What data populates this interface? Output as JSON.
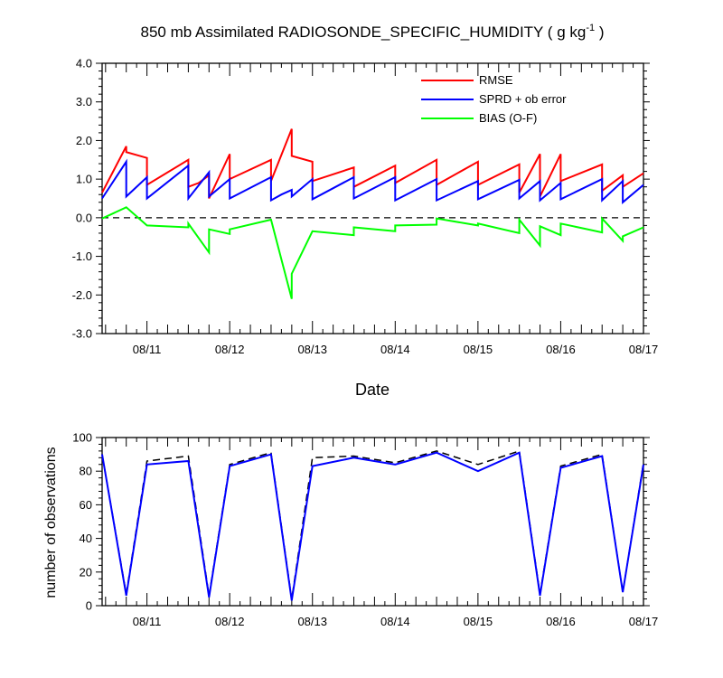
{
  "title": "850 mb Assimilated RADIOSONDE_SPECIFIC_HUMIDITY ( g kg",
  "title_sup": "-1",
  "title_end": " )",
  "chart_data": [
    {
      "type": "line",
      "xlabel": "Date",
      "ylabel": "",
      "x_tick_labels": [
        "08/11",
        "08/12",
        "08/13",
        "08/14",
        "08/15",
        "08/16",
        "08/17"
      ],
      "xlim": [
        "08/10 11:00",
        "08/17 00:00"
      ],
      "ylim": [
        -3.0,
        4.0
      ],
      "y_ticks": [
        -3.0,
        -2.0,
        -1.0,
        0.0,
        1.0,
        2.0,
        3.0,
        4.0
      ],
      "y_tick_labels": [
        "-3.0",
        "-2.0",
        "-1.0",
        "0.0",
        "1.0",
        "2.0",
        "3.0",
        "4.0"
      ],
      "grid": false,
      "legend_position": "top-right",
      "reference_line": {
        "y": 0.0,
        "style": "dashed"
      },
      "series": [
        {
          "name": "RMSE",
          "color": "#ff0000",
          "x": [
            "08/10 11:00",
            "08/10 18:00",
            "08/10 18:00",
            "08/11 00:00",
            "08/11 00:00",
            "08/11 12:00",
            "08/11 12:00",
            "08/11 15:00",
            "08/11 18:00",
            "08/11 18:00",
            "08/12 00:00",
            "08/12 00:00",
            "08/12 12:00",
            "08/12 12:00",
            "08/12 18:00",
            "08/12 18:00",
            "08/13 00:00",
            "08/13 00:00",
            "08/13 12:00",
            "08/13 12:00",
            "08/14 00:00",
            "08/14 00:00",
            "08/14 12:00",
            "08/14 12:00",
            "08/15 00:00",
            "08/15 00:00",
            "08/15 12:00",
            "08/15 12:00",
            "08/15 18:00",
            "08/15 18:00",
            "08/16 00:00",
            "08/16 00:00",
            "08/16 12:00",
            "08/16 12:00",
            "08/16 18:00",
            "08/16 18:00",
            "08/17 00:00"
          ],
          "values": [
            0.65,
            1.85,
            1.7,
            1.55,
            0.85,
            1.5,
            0.8,
            0.9,
            1.1,
            0.5,
            1.65,
            1.0,
            1.5,
            0.95,
            2.3,
            1.6,
            1.45,
            0.95,
            1.3,
            0.8,
            1.35,
            0.9,
            1.5,
            0.85,
            1.45,
            0.85,
            1.38,
            0.65,
            1.65,
            0.55,
            1.65,
            0.95,
            1.38,
            0.7,
            1.1,
            0.8,
            1.15
          ]
        },
        {
          "name": "SPRD + ob error",
          "color": "#0000ff",
          "x": [
            "08/10 11:00",
            "08/10 18:00",
            "08/10 18:00",
            "08/11 00:00",
            "08/11 00:00",
            "08/11 12:00",
            "08/11 12:00",
            "08/11 18:00",
            "08/11 18:00",
            "08/12 00:00",
            "08/12 00:00",
            "08/12 12:00",
            "08/12 12:00",
            "08/12 15:00",
            "08/12 18:00",
            "08/12 18:00",
            "08/13 00:00",
            "08/13 00:00",
            "08/13 12:00",
            "08/13 12:00",
            "08/14 00:00",
            "08/14 00:00",
            "08/14 12:00",
            "08/14 12:00",
            "08/15 00:00",
            "08/15 00:00",
            "08/15 12:00",
            "08/15 12:00",
            "08/15 18:00",
            "08/15 18:00",
            "08/16 00:00",
            "08/16 00:00",
            "08/16 12:00",
            "08/16 12:00",
            "08/16 18:00",
            "08/16 18:00",
            "08/17 00:00"
          ],
          "values": [
            0.5,
            1.45,
            0.55,
            1.05,
            0.5,
            1.35,
            0.5,
            1.18,
            0.55,
            1.0,
            0.5,
            1.05,
            0.45,
            0.6,
            0.72,
            0.55,
            1.0,
            0.48,
            1.05,
            0.5,
            1.05,
            0.45,
            1.0,
            0.45,
            0.95,
            0.48,
            0.98,
            0.5,
            0.95,
            0.45,
            0.9,
            0.48,
            1.0,
            0.45,
            0.95,
            0.4,
            0.85
          ]
        },
        {
          "name": "BIAS (O-F)",
          "color": "#00ff00",
          "x": [
            "08/10 11:00",
            "08/10 18:00",
            "08/11 00:00",
            "08/11 12:00",
            "08/11 12:00",
            "08/11 18:00",
            "08/11 18:00",
            "08/12 00:00",
            "08/12 00:00",
            "08/12 12:00",
            "08/12 18:00",
            "08/12 18:00",
            "08/13 00:00",
            "08/13 12:00",
            "08/13 12:00",
            "08/14 00:00",
            "08/14 00:00",
            "08/14 12:00",
            "08/14 12:00",
            "08/15 00:00",
            "08/15 00:00",
            "08/15 12:00",
            "08/15 12:00",
            "08/15 18:00",
            "08/15 18:00",
            "08/16 00:00",
            "08/16 00:00",
            "08/16 12:00",
            "08/16 12:00",
            "08/16 18:00",
            "08/16 18:00",
            "08/17 00:00"
          ],
          "values": [
            -0.02,
            0.27,
            -0.2,
            -0.25,
            -0.15,
            -0.9,
            -0.3,
            -0.42,
            -0.3,
            -0.05,
            -2.1,
            -1.45,
            -0.35,
            -0.45,
            -0.25,
            -0.35,
            -0.2,
            -0.18,
            -0.02,
            -0.2,
            -0.15,
            -0.4,
            -0.05,
            -0.72,
            -0.22,
            -0.45,
            -0.15,
            -0.38,
            -0.02,
            -0.6,
            -0.48,
            -0.25
          ]
        }
      ]
    },
    {
      "type": "line",
      "xlabel": "",
      "ylabel": "number of observations",
      "x_tick_labels": [
        "08/11",
        "08/12",
        "08/13",
        "08/14",
        "08/15",
        "08/16",
        "08/17"
      ],
      "xlim": [
        "08/10 11:00",
        "08/17 00:00"
      ],
      "ylim": [
        0,
        100
      ],
      "y_ticks": [
        0,
        20,
        40,
        60,
        80,
        100
      ],
      "y_tick_labels": [
        "0",
        "20",
        "40",
        "60",
        "80",
        "100"
      ],
      "grid": false,
      "series": [
        {
          "style": "dashed",
          "color": "#000000",
          "x": [
            "08/10 11:00",
            "08/10 18:00",
            "08/11 00:00",
            "08/11 12:00",
            "08/11 18:00",
            "08/12 00:00",
            "08/12 12:00",
            "08/12 18:00",
            "08/13 00:00",
            "08/13 12:00",
            "08/14 00:00",
            "08/14 12:00",
            "08/15 00:00",
            "08/15 12:00",
            "08/15 18:00",
            "08/16 00:00",
            "08/16 12:00",
            "08/16 18:00",
            "08/17 00:00"
          ],
          "values": [
            90,
            7,
            86,
            89,
            6,
            84,
            91,
            4,
            88,
            89,
            85,
            92,
            84,
            92,
            7,
            83,
            90,
            8,
            85
          ]
        },
        {
          "style": "solid",
          "color": "#0000ff",
          "x": [
            "08/10 11:00",
            "08/10 18:00",
            "08/11 00:00",
            "08/11 12:00",
            "08/11 18:00",
            "08/12 00:00",
            "08/12 12:00",
            "08/12 18:00",
            "08/13 00:00",
            "08/13 12:00",
            "08/14 00:00",
            "08/14 12:00",
            "08/15 00:00",
            "08/15 12:00",
            "08/15 18:00",
            "08/16 00:00",
            "08/16 12:00",
            "08/16 18:00",
            "08/17 00:00"
          ],
          "values": [
            90,
            6,
            84,
            86,
            5,
            83,
            90,
            3,
            83,
            88,
            84,
            91,
            80,
            91,
            6,
            82,
            89,
            8,
            84
          ]
        }
      ]
    }
  ]
}
